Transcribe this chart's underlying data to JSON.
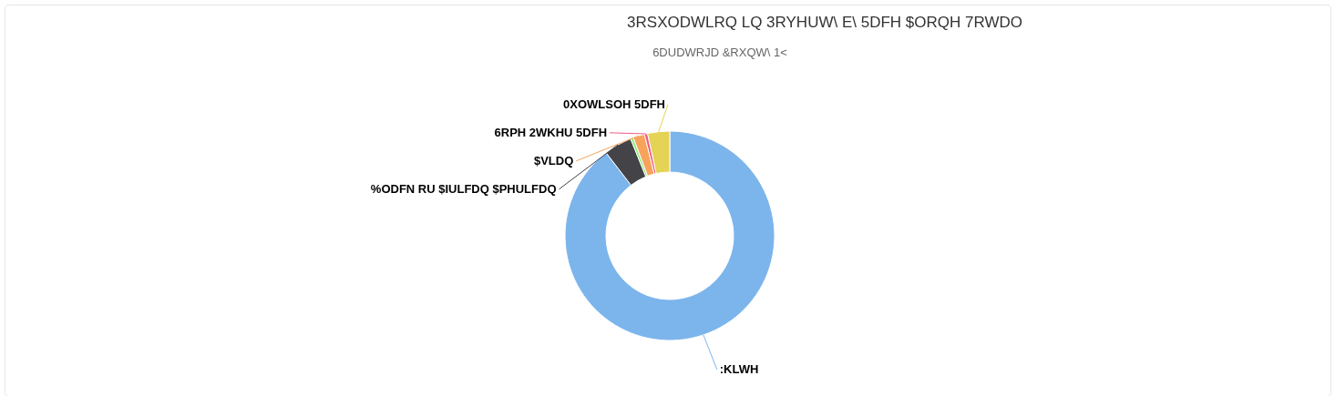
{
  "chart_data": {
    "type": "donut",
    "title": "3RSXODWLRQ LQ 3RYHUW\\ E\\ 5DFH $ORQH 7RWDO",
    "subtitle": "6DUDWRJD &RXQW\\ 1<",
    "categories": [
      ":KLWH",
      "%ODFN RU $IULFDQ $PHULFDQ",
      null,
      "$VLDQ",
      "6RPH 2WKHU 5DFH",
      "0XOWLSOH 5DFH"
    ],
    "values": [
      89.6,
      4.3,
      0.45,
      1.75,
      0.5,
      3.4
    ],
    "colors": [
      "#7cb5ec",
      "#434348",
      "#90ed7d",
      "#f7a35c",
      "#f15c80",
      "#e4d354"
    ]
  }
}
